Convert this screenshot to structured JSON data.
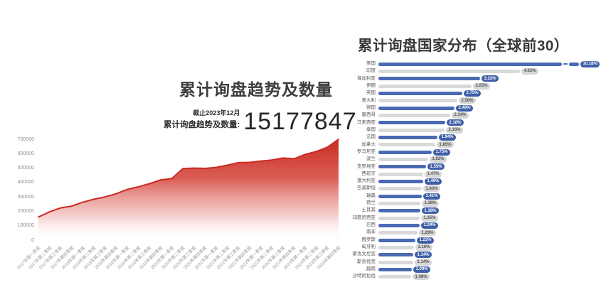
{
  "page": {
    "background": "#ffffff"
  },
  "left_chart": {
    "stat_caption_date": "截止2023年12月",
    "stat_caption_label": "累计询盘趋势及数量:",
    "stat_value": "15177847"
  },
  "colors": {
    "trend_line": "#cb2a22",
    "trend_fill_top": "#c8291f",
    "trend_fill_bottom": "#ffffff",
    "bar_blue": "#4a6ab1",
    "bar_gray": "#d9d9d9",
    "badge_blue": "#3f5fa8",
    "badge_gray": "#d6d6d6",
    "badge_text_blue": "#ffffff",
    "badge_text_gray": "#555555",
    "tick_label": "#979797",
    "title_text": "#3d3d3d"
  },
  "chart_data": [
    {
      "type": "area",
      "title": "累计询盘趋势及数量",
      "xlabel": "",
      "ylabel": "",
      "grid": false,
      "legend": "none",
      "ylim": [
        0,
        700000
      ],
      "y_tick_labels": [
        "700000",
        "600000",
        "500000",
        "400000",
        "300000",
        "200000",
        "100000",
        "0"
      ],
      "y_tick_values": [
        700000,
        600000,
        500000,
        400000,
        300000,
        200000,
        100000,
        0
      ],
      "x": [
        "2017年第一季度",
        "2017年第二季度",
        "2017年第三季度",
        "2017年第四季度",
        "2018年第一季度",
        "2018年第二季度",
        "2018年第三季度",
        "2018年第四季度",
        "2019年第一季度",
        "2019年第二季度",
        "2019年第三季度",
        "2019年第四季度",
        "2020年第一季度",
        "2020年第二季度",
        "2020年第三季度",
        "2020年第四季度",
        "2021年第一季度",
        "2021年第二季度",
        "2021年第三季度",
        "2021年第四季度",
        "2022年第一季度",
        "2022年第二季度",
        "2022年第三季度",
        "2022年第四季度",
        "2023年第一季度",
        "2023年第二季度",
        "2023年第三季度",
        "2023年第四季度"
      ],
      "values": [
        160000,
        196000,
        224000,
        236000,
        263000,
        284000,
        300000,
        322000,
        352000,
        370000,
        392000,
        418000,
        428000,
        497000,
        500000,
        498000,
        505000,
        520000,
        538000,
        540000,
        548000,
        556000,
        570000,
        565000,
        595000,
        615000,
        645000,
        700000
      ],
      "annotation": "截止2023年12月 累计询盘趋势及数量: 15177847"
    },
    {
      "type": "bar",
      "orientation": "horizontal",
      "title": "累计询盘国家分布（全球前30）",
      "value_unit": "%",
      "style_note": "rows alternate blue/gray; first bar truncated with axis break",
      "rows": [
        {
          "country": "美国",
          "label": "10.18%",
          "value": 10.18,
          "truncated": true
        },
        {
          "country": "印度",
          "label": "4.62%",
          "value": 4.62
        },
        {
          "country": "保加利亚",
          "label": "3.32%",
          "value": 3.32
        },
        {
          "country": "伊朗",
          "label": "3.05%",
          "value": 3.05
        },
        {
          "country": "英国",
          "label": "2.75%",
          "value": 2.75
        },
        {
          "country": "意大利",
          "label": "2.58%",
          "value": 2.58
        },
        {
          "country": "德国",
          "label": "2.49%",
          "value": 2.49
        },
        {
          "country": "墨西哥",
          "label": "2.34%",
          "value": 2.34
        },
        {
          "country": "马来西亚",
          "label": "2.18%",
          "value": 2.18
        },
        {
          "country": "泰国",
          "label": "2.16%",
          "value": 2.16
        },
        {
          "country": "法国",
          "label": "1.94%",
          "value": 1.94
        },
        {
          "country": "加拿大",
          "label": "1.85%",
          "value": 1.85
        },
        {
          "country": "罗马尼亚",
          "label": "1.75%",
          "value": 1.75
        },
        {
          "country": "波兰",
          "label": "1.62%",
          "value": 1.62
        },
        {
          "country": "克罗地亚",
          "label": "1.55%",
          "value": 1.55
        },
        {
          "country": "西班牙",
          "label": "1.47%",
          "value": 1.47
        },
        {
          "country": "澳大利亚",
          "label": "1.46%",
          "value": 1.46
        },
        {
          "country": "巴基斯坦",
          "label": "1.43%",
          "value": 1.43
        },
        {
          "country": "瑞典",
          "label": "1.41%",
          "value": 1.41
        },
        {
          "country": "荷兰",
          "label": "1.38%",
          "value": 1.38
        },
        {
          "country": "土耳其",
          "label": "1.38%",
          "value": 1.38
        },
        {
          "country": "印度尼西亚",
          "label": "1.35%",
          "value": 1.35
        },
        {
          "country": "巴西",
          "label": "1.34%",
          "value": 1.34
        },
        {
          "country": "南非",
          "label": "1.28%",
          "value": 1.28
        },
        {
          "country": "俄罗斯",
          "label": "1.22%",
          "value": 1.22
        },
        {
          "country": "匈牙利",
          "label": "1.16%",
          "value": 1.16
        },
        {
          "country": "斯洛文尼亚",
          "label": "1.14%",
          "value": 1.14
        },
        {
          "country": "斯洛伐克",
          "label": "1.14%",
          "value": 1.14
        },
        {
          "country": "越南",
          "label": "1.09%",
          "value": 1.09
        },
        {
          "country": "沙特阿拉伯",
          "label": "1.08%",
          "value": 1.08
        }
      ]
    }
  ]
}
